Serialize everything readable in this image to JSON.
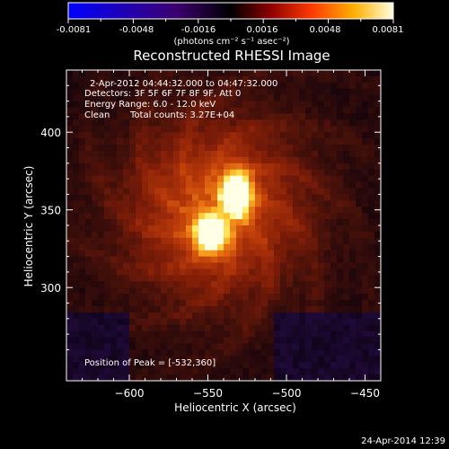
{
  "colorbar": {
    "tick_labels": [
      "-0.0081",
      "-0.0048",
      "-0.0016",
      "0.0016",
      "0.0048",
      "0.0081"
    ],
    "unit_label": "(photons cm⁻² s⁻¹ asec⁻²)",
    "min": -0.0081,
    "max": 0.0081,
    "colors": [
      "#0000ff",
      "#4a0090",
      "#000000",
      "#8a0000",
      "#ff3a00",
      "#ffaa00",
      "#ffff70",
      "#ffffff"
    ]
  },
  "title": "Reconstructed RHESSI Image",
  "info": {
    "time_range": "2-Apr-2012 04:44:32.000 to 04:47:32.000",
    "detectors": "Detectors: 3F 5F 6F 7F 8F 9F, Att 0",
    "energy_range": "Energy Range: 6.0 - 12.0 keV",
    "algorithm": "Clean",
    "total_counts": "Total counts: 3.27E+04"
  },
  "peak_label": "Position of Peak = [-532,360]",
  "axes": {
    "xlabel": "Heliocentric X (arcsec)",
    "ylabel": "Heliocentric Y (arcsec)",
    "xlim": [
      -640,
      -440
    ],
    "ylim": [
      240,
      440
    ],
    "xticks": [
      -600,
      -550,
      -500,
      -450
    ],
    "yticks": [
      300,
      350,
      400
    ],
    "xtick_labels": [
      "−600",
      "−550",
      "−500",
      "−450"
    ],
    "ytick_labels": [
      "300",
      "350",
      "400"
    ]
  },
  "image": {
    "peak": [
      -532,
      360
    ],
    "secondary": [
      -548,
      335
    ]
  },
  "timestamp": "24-Apr-2014 12:39"
}
